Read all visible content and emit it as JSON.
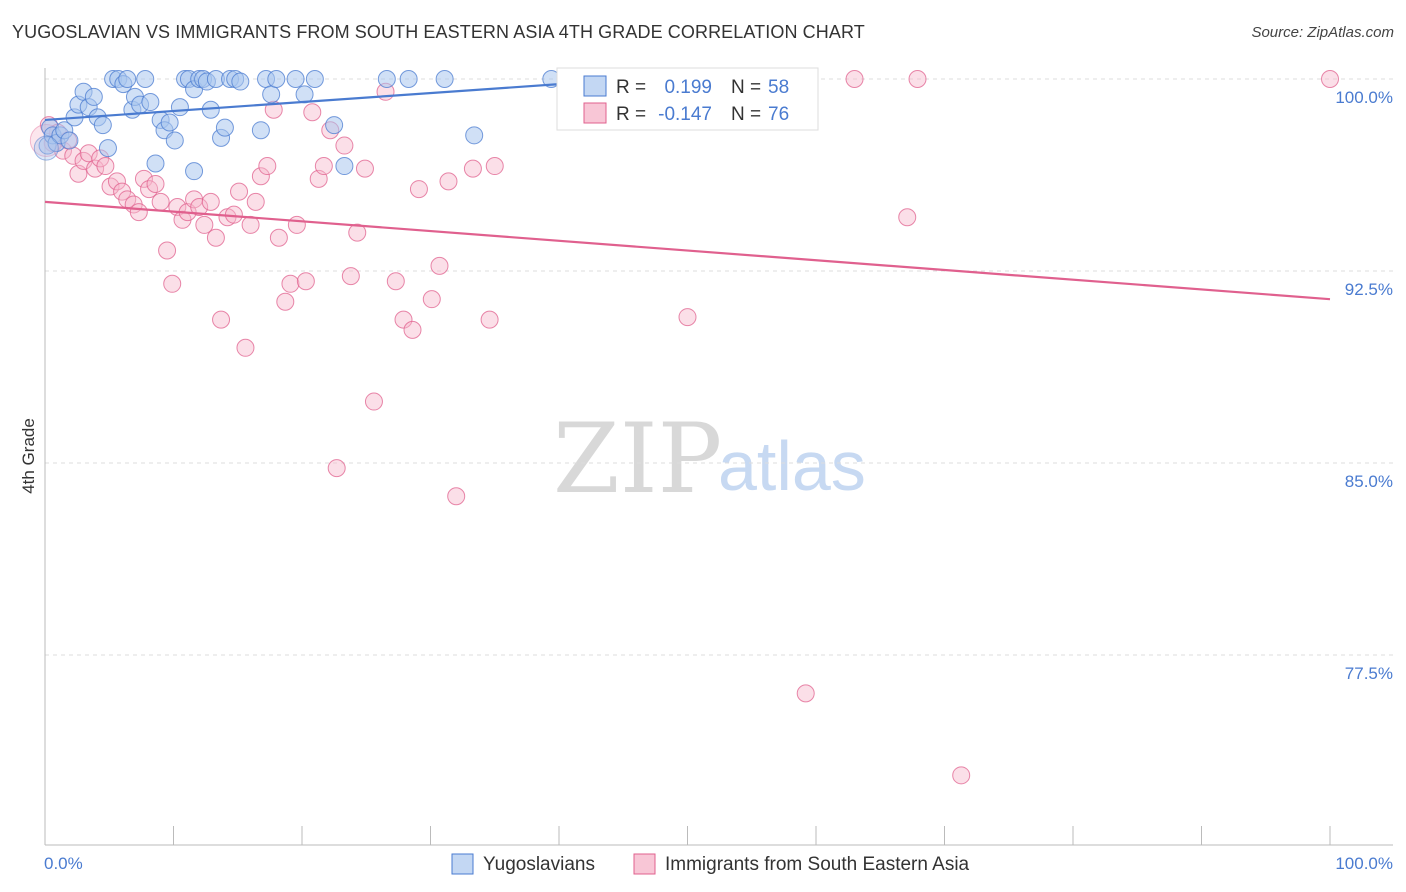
{
  "title": "YUGOSLAVIAN VS IMMIGRANTS FROM SOUTH EASTERN ASIA 4TH GRADE CORRELATION CHART",
  "source": "Source: ZipAtlas.com",
  "watermark": {
    "zip": "ZIP",
    "atlas": "atlas"
  },
  "colors": {
    "blue": "#4a7bd0",
    "blue_fill": "#a9c6ee",
    "pink": "#e0608e",
    "pink_fill": "#f6b8cc",
    "grid": "#dddddd"
  },
  "legend": {
    "rows": [
      {
        "r_label": "R =",
        "r_value": "0.199",
        "n_label": "N =",
        "n_value": "58"
      },
      {
        "r_label": "R =",
        "r_value": "-0.147",
        "n_label": "N =",
        "n_value": "76"
      }
    ]
  },
  "bottom_legend": {
    "series1": "Yugoslavians",
    "series2": "Immigrants from South Eastern Asia"
  },
  "chart_data": {
    "type": "scatter",
    "ylabel": "4th Grade",
    "xlabel": "",
    "xlim": [
      0,
      100
    ],
    "ylim": [
      70.0,
      101.6
    ],
    "x_tick_labels": {
      "left": "0.0%",
      "right": "100.0%"
    },
    "y_ticks": [
      {
        "value": 100.0,
        "label": "100.0%"
      },
      {
        "value": 92.5,
        "label": "92.5%"
      },
      {
        "value": 85.0,
        "label": "85.0%"
      },
      {
        "value": 77.5,
        "label": "77.5%"
      }
    ],
    "series": [
      {
        "name": "Yugoslavians",
        "trend": {
          "x0": 0,
          "y0": 98.4,
          "x1": 40,
          "y1": 99.8
        },
        "points": [
          [
            0.2,
            97.4
          ],
          [
            0.4,
            98.1
          ],
          [
            0.6,
            97.8
          ],
          [
            0.9,
            97.5
          ],
          [
            1.2,
            97.8
          ],
          [
            1.5,
            98.0
          ],
          [
            1.9,
            97.6
          ],
          [
            2.3,
            98.5
          ],
          [
            2.6,
            99.0
          ],
          [
            3.0,
            99.5
          ],
          [
            3.4,
            98.9
          ],
          [
            3.8,
            99.3
          ],
          [
            4.1,
            98.5
          ],
          [
            4.5,
            98.2
          ],
          [
            4.9,
            97.3
          ],
          [
            5.3,
            100.0
          ],
          [
            5.7,
            100.0
          ],
          [
            6.1,
            99.8
          ],
          [
            6.4,
            100.0
          ],
          [
            6.8,
            98.8
          ],
          [
            7.0,
            99.3
          ],
          [
            7.4,
            99.0
          ],
          [
            7.8,
            100.0
          ],
          [
            8.2,
            99.1
          ],
          [
            8.6,
            96.7
          ],
          [
            9.0,
            98.4
          ],
          [
            9.3,
            98.0
          ],
          [
            9.7,
            98.3
          ],
          [
            10.1,
            97.6
          ],
          [
            10.5,
            98.9
          ],
          [
            10.9,
            100.0
          ],
          [
            11.2,
            100.0
          ],
          [
            11.6,
            99.6
          ],
          [
            12.0,
            100.0
          ],
          [
            12.3,
            100.0
          ],
          [
            12.6,
            99.9
          ],
          [
            12.9,
            98.8
          ],
          [
            13.3,
            100.0
          ],
          [
            13.7,
            97.7
          ],
          [
            14.0,
            98.1
          ],
          [
            14.4,
            100.0
          ],
          [
            14.8,
            100.0
          ],
          [
            15.2,
            99.9
          ],
          [
            16.8,
            98.0
          ],
          [
            17.2,
            100.0
          ],
          [
            17.6,
            99.4
          ],
          [
            18.0,
            100.0
          ],
          [
            19.5,
            100.0
          ],
          [
            20.2,
            99.4
          ],
          [
            21.0,
            100.0
          ],
          [
            22.5,
            98.2
          ],
          [
            23.3,
            96.6
          ],
          [
            26.6,
            100.0
          ],
          [
            28.3,
            100.0
          ],
          [
            31.1,
            100.0
          ],
          [
            39.4,
            100.0
          ],
          [
            33.4,
            97.8
          ],
          [
            11.6,
            96.4
          ]
        ]
      },
      {
        "name": "Immigrants from South Eastern Asia",
        "trend": {
          "x0": 0,
          "y0": 95.2,
          "x1": 100,
          "y1": 91.4
        },
        "points": [
          [
            0.3,
            98.2
          ],
          [
            0.6,
            97.5
          ],
          [
            1.0,
            97.9
          ],
          [
            1.4,
            97.2
          ],
          [
            1.8,
            97.6
          ],
          [
            2.2,
            97.0
          ],
          [
            2.6,
            96.3
          ],
          [
            3.0,
            96.8
          ],
          [
            3.4,
            97.1
          ],
          [
            3.9,
            96.5
          ],
          [
            4.3,
            96.9
          ],
          [
            4.7,
            96.6
          ],
          [
            5.1,
            95.8
          ],
          [
            5.6,
            96.0
          ],
          [
            6.0,
            95.6
          ],
          [
            6.4,
            95.3
          ],
          [
            6.9,
            95.1
          ],
          [
            7.3,
            94.8
          ],
          [
            7.7,
            96.1
          ],
          [
            8.1,
            95.7
          ],
          [
            8.6,
            95.9
          ],
          [
            9.0,
            95.2
          ],
          [
            9.5,
            93.3
          ],
          [
            9.9,
            92.0
          ],
          [
            10.3,
            95.0
          ],
          [
            10.7,
            94.5
          ],
          [
            11.1,
            94.8
          ],
          [
            11.6,
            95.3
          ],
          [
            12.0,
            95.0
          ],
          [
            12.4,
            94.3
          ],
          [
            12.9,
            95.2
          ],
          [
            13.3,
            93.8
          ],
          [
            13.7,
            90.6
          ],
          [
            14.2,
            94.6
          ],
          [
            14.7,
            94.7
          ],
          [
            15.1,
            95.6
          ],
          [
            15.6,
            89.5
          ],
          [
            16.0,
            94.3
          ],
          [
            16.4,
            95.2
          ],
          [
            16.8,
            96.2
          ],
          [
            17.3,
            96.6
          ],
          [
            17.8,
            98.8
          ],
          [
            18.2,
            93.8
          ],
          [
            18.7,
            91.3
          ],
          [
            19.1,
            92.0
          ],
          [
            19.6,
            94.3
          ],
          [
            20.3,
            92.1
          ],
          [
            20.8,
            98.7
          ],
          [
            21.3,
            96.1
          ],
          [
            21.7,
            96.6
          ],
          [
            22.2,
            98.0
          ],
          [
            22.7,
            84.8
          ],
          [
            23.3,
            97.4
          ],
          [
            23.8,
            92.3
          ],
          [
            24.3,
            94.0
          ],
          [
            24.9,
            96.5
          ],
          [
            25.6,
            87.4
          ],
          [
            26.5,
            99.5
          ],
          [
            27.3,
            92.1
          ],
          [
            27.9,
            90.6
          ],
          [
            28.6,
            90.2
          ],
          [
            29.1,
            95.7
          ],
          [
            30.1,
            91.4
          ],
          [
            30.7,
            92.7
          ],
          [
            31.4,
            96.0
          ],
          [
            32.0,
            83.7
          ],
          [
            33.3,
            96.5
          ],
          [
            34.6,
            90.6
          ],
          [
            35.0,
            96.6
          ],
          [
            50.0,
            90.7
          ],
          [
            59.2,
            76.0
          ],
          [
            63.0,
            100.0
          ],
          [
            67.1,
            94.6
          ],
          [
            67.9,
            100.0
          ],
          [
            71.3,
            72.8
          ],
          [
            100.0,
            100.0
          ]
        ]
      }
    ]
  }
}
